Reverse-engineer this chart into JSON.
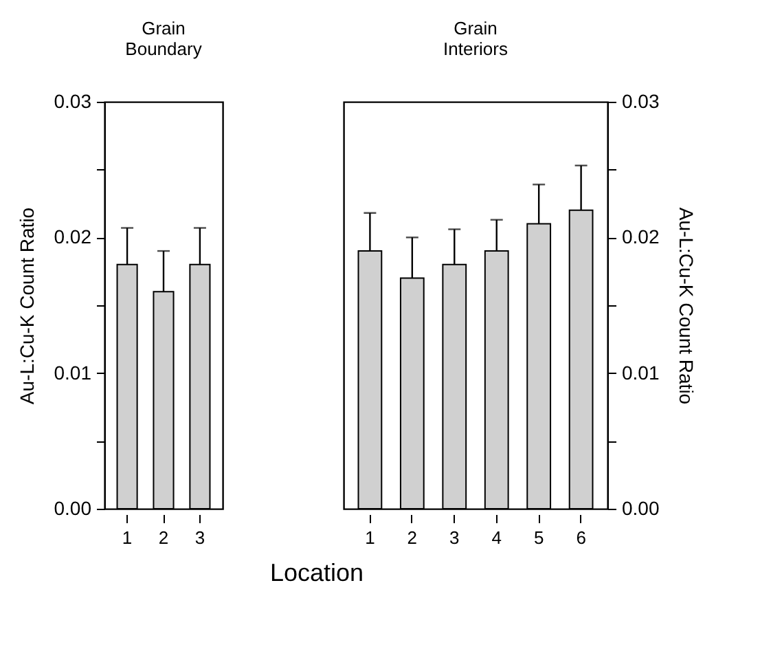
{
  "chart_data": [
    {
      "type": "bar",
      "title": "Grain\nBoundary",
      "ylabel": "Au-L:Cu-K Count Ratio",
      "categories": [
        "1",
        "2",
        "3"
      ],
      "series": [
        {
          "color": "#d0d0d0",
          "values": [
            0.018,
            0.016,
            0.018
          ],
          "errors": [
            0.0027,
            0.003,
            0.0027
          ]
        }
      ],
      "ylim": [
        0,
        0.03
      ],
      "yticks": [
        {
          "value": 0,
          "label": "0.00"
        },
        {
          "value": 0.005,
          "label": null
        },
        {
          "value": 0.01,
          "label": "0.01"
        },
        {
          "value": 0.015,
          "label": null
        },
        {
          "value": 0.02,
          "label": "0.02"
        },
        {
          "value": 0.025,
          "label": null
        },
        {
          "value": 0.03,
          "label": "0.03"
        }
      ]
    },
    {
      "type": "bar",
      "title": "Grain\nInteriors",
      "xlabel": "Location",
      "y2label": "Au-L:Cu-K Count Ratio",
      "categories": [
        "1",
        "2",
        "3",
        "4",
        "5",
        "6"
      ],
      "series": [
        {
          "color": "#d0d0d0",
          "axis": "y2",
          "values": [
            0.019,
            0.017,
            0.018,
            0.019,
            0.021,
            0.022
          ],
          "errors": [
            0.0028,
            0.003,
            0.0026,
            0.0023,
            0.0029,
            0.0033
          ]
        }
      ],
      "y2lim": [
        0,
        0.03
      ],
      "y2ticks": [
        {
          "value": 0,
          "label": "0.00"
        },
        {
          "value": 0.005,
          "label": null
        },
        {
          "value": 0.01,
          "label": "0.01"
        },
        {
          "value": 0.015,
          "label": null
        },
        {
          "value": 0.02,
          "label": "0.02"
        },
        {
          "value": 0.025,
          "label": null
        },
        {
          "value": 0.03,
          "label": "0.03"
        }
      ]
    }
  ]
}
